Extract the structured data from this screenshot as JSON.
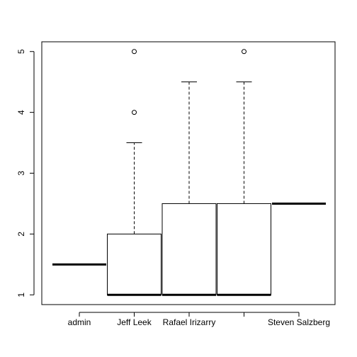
{
  "chart_data": {
    "type": "box",
    "categories": [
      "admin",
      "Jeff Leek",
      "Rafael Irizarry",
      "",
      "Steven Salzberg"
    ],
    "boxes": [
      {
        "name": "admin",
        "min": 1.5,
        "q1": 1.5,
        "median": 1.5,
        "q3": 1.5,
        "max": 1.5,
        "outliers": []
      },
      {
        "name": "Jeff Leek",
        "min": 1.0,
        "q1": 1.0,
        "median": 1.0,
        "q3": 2.0,
        "max": 3.5,
        "outliers": [
          4,
          5
        ]
      },
      {
        "name": "Rafael Irizarry",
        "min": 1.0,
        "q1": 1.0,
        "median": 1.0,
        "q3": 2.5,
        "max": 4.5,
        "outliers": []
      },
      {
        "name": "",
        "min": 1.0,
        "q1": 1.0,
        "median": 1.0,
        "q3": 2.5,
        "max": 4.5,
        "outliers": [
          5
        ]
      },
      {
        "name": "Steven Salzberg",
        "min": 2.5,
        "q1": 2.5,
        "median": 2.5,
        "q3": 2.5,
        "max": 2.5,
        "outliers": []
      }
    ],
    "y_ticks": [
      "1",
      "2",
      "3",
      "4",
      "5"
    ],
    "ylim": [
      0.84,
      5.16
    ],
    "title": "",
    "xlabel": "",
    "ylabel": "",
    "grid": false
  }
}
